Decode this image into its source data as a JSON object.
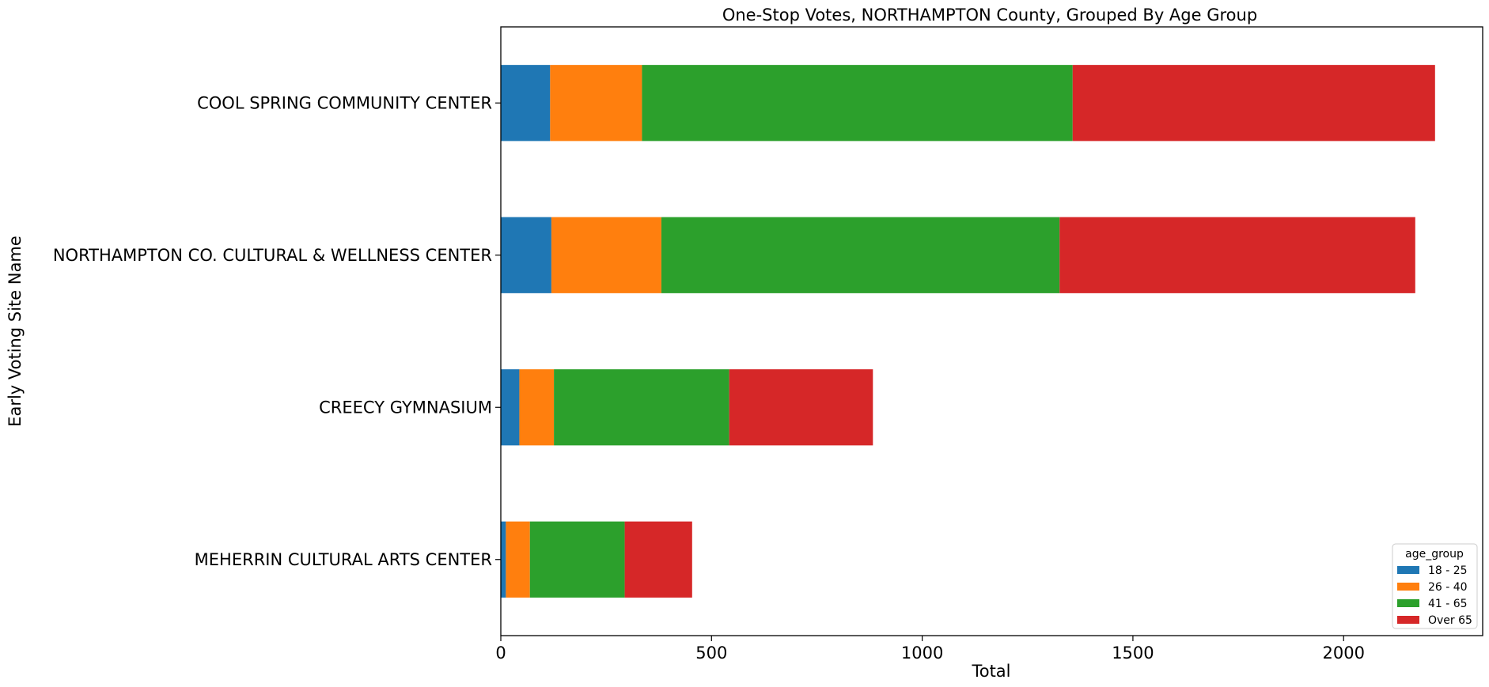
{
  "chart_data": {
    "type": "bar",
    "orientation": "horizontal",
    "stacked": true,
    "title": "One-Stop Votes, NORTHAMPTON County, Grouped By Age Group",
    "xlabel": "Total",
    "ylabel": "Early Voting Site Name",
    "xlim": [
      0,
      2330
    ],
    "xticks": [
      "0",
      "500",
      "1000",
      "1500",
      "2000"
    ],
    "grid": false,
    "legend_title": "age_group",
    "legend_position": "bottom-right",
    "categories": [
      "COOL SPRING COMMUNITY CENTER",
      "NORTHAMPTON CO. CULTURAL & WELLNESS CENTER",
      "CREECY GYMNASIUM",
      "MEHERRIN CULTURAL ARTS CENTER"
    ],
    "series": [
      {
        "name": "18 - 25",
        "color": "#1f77b4",
        "values": [
          117,
          120,
          44,
          12
        ]
      },
      {
        "name": "26 - 40",
        "color": "#ff7f0e",
        "values": [
          218,
          261,
          82,
          57
        ]
      },
      {
        "name": "41 - 65",
        "color": "#2ca02c",
        "values": [
          1022,
          945,
          416,
          225
        ]
      },
      {
        "name": "Over 65",
        "color": "#d62728",
        "values": [
          860,
          844,
          341,
          160
        ]
      }
    ]
  }
}
